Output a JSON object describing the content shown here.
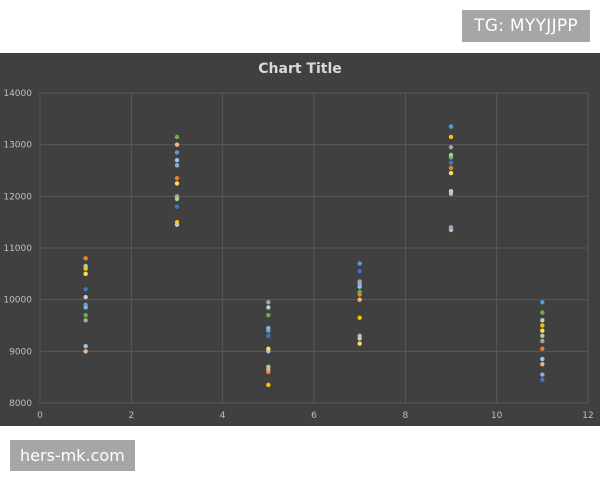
{
  "watermarks": {
    "top_right": "TG: MYYJJPP",
    "bottom_left": "hers-mk.com"
  },
  "colors": {
    "background": "#404040",
    "grid": "#595959",
    "text": "#d9d9d9",
    "axis_text": "#bfbfbf"
  },
  "chart_data": {
    "type": "scatter",
    "title": "Chart Title",
    "xlabel": "",
    "ylabel": "",
    "xlim": [
      0,
      12
    ],
    "ylim": [
      8000,
      14000
    ],
    "xticks": [
      0,
      2,
      4,
      6,
      8,
      10,
      12
    ],
    "yticks": [
      8000,
      9000,
      10000,
      11000,
      12000,
      13000,
      14000
    ],
    "grid": true,
    "series": [
      {
        "color": "#5b9bd5",
        "points": [
          [
            1,
            9900
          ],
          [
            3,
            12850
          ],
          [
            5,
            9400
          ],
          [
            7,
            10700
          ],
          [
            9,
            13350
          ],
          [
            11,
            9950
          ]
        ]
      },
      {
        "color": "#ed7d31",
        "points": [
          [
            1,
            10800
          ],
          [
            3,
            12350
          ],
          [
            5,
            8600
          ],
          [
            7,
            10100
          ],
          [
            9,
            12550
          ],
          [
            11,
            9050
          ]
        ]
      },
      {
        "color": "#a5a5a5",
        "points": [
          [
            1,
            9600
          ],
          [
            3,
            12000
          ],
          [
            5,
            9950
          ],
          [
            7,
            10350
          ],
          [
            9,
            12950
          ],
          [
            11,
            9200
          ]
        ]
      },
      {
        "color": "#ffc000",
        "points": [
          [
            1,
            10600
          ],
          [
            3,
            11500
          ],
          [
            5,
            8350
          ],
          [
            7,
            9650
          ],
          [
            9,
            13150
          ],
          [
            11,
            9500
          ]
        ]
      },
      {
        "color": "#4472c4",
        "points": [
          [
            1,
            10200
          ],
          [
            3,
            11800
          ],
          [
            5,
            9300
          ],
          [
            7,
            10550
          ],
          [
            9,
            12650
          ],
          [
            11,
            8450
          ]
        ]
      },
      {
        "color": "#70ad47",
        "points": [
          [
            1,
            9700
          ],
          [
            3,
            13150
          ],
          [
            5,
            9700
          ],
          [
            7,
            10150
          ],
          [
            9,
            12750
          ],
          [
            11,
            9750
          ]
        ]
      },
      {
        "color": "#9dc3e6",
        "points": [
          [
            1,
            9100
          ],
          [
            3,
            12700
          ],
          [
            5,
            9000
          ],
          [
            7,
            10250
          ],
          [
            9,
            12050
          ],
          [
            11,
            8850
          ]
        ]
      },
      {
        "color": "#f4b183",
        "points": [
          [
            1,
            9000
          ],
          [
            3,
            13000
          ],
          [
            5,
            8650
          ],
          [
            7,
            10000
          ],
          [
            9,
            11350
          ],
          [
            11,
            8750
          ]
        ]
      },
      {
        "color": "#c9c9c9",
        "points": [
          [
            1,
            10050
          ],
          [
            3,
            11450
          ],
          [
            5,
            9850
          ],
          [
            7,
            9250
          ],
          [
            9,
            12100
          ],
          [
            11,
            9600
          ]
        ]
      },
      {
        "color": "#ffd966",
        "points": [
          [
            1,
            10500
          ],
          [
            3,
            12250
          ],
          [
            5,
            9050
          ],
          [
            7,
            9150
          ],
          [
            9,
            12450
          ],
          [
            11,
            9400
          ]
        ]
      },
      {
        "color": "#8faadc",
        "points": [
          [
            1,
            9850
          ],
          [
            3,
            12600
          ],
          [
            5,
            9450
          ],
          [
            7,
            10300
          ],
          [
            9,
            11400
          ],
          [
            11,
            8550
          ]
        ]
      },
      {
        "color": "#a9d18e",
        "points": [
          [
            1,
            10650
          ],
          [
            3,
            11950
          ],
          [
            5,
            8700
          ],
          [
            7,
            9300
          ],
          [
            9,
            12800
          ],
          [
            11,
            9300
          ]
        ]
      }
    ]
  }
}
